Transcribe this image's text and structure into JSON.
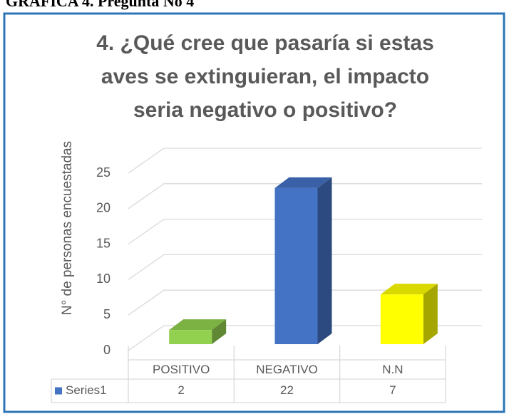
{
  "page_heading": "GRAFICA 4. Pregunta No 4",
  "chart_data": {
    "type": "bar3d",
    "title": [
      "4. ¿Qué cree que pasaría si estas",
      "aves se extinguieran, el impacto",
      "seria negativo o positivo?"
    ],
    "y_label": "N°  de personas encuestadas",
    "categories": [
      "POSITIVO",
      "NEGATIVO",
      "N.N"
    ],
    "series": [
      {
        "name": "Series1",
        "color": "#4472c4",
        "values": [
          2,
          22,
          7
        ],
        "point_colors": [
          "#92d050",
          "#4472c4",
          "#ffff00"
        ]
      }
    ],
    "ylim": [
      0,
      25
    ],
    "yticks": [
      0,
      5,
      10,
      15,
      20,
      25
    ],
    "grid": true,
    "data_table": true
  }
}
